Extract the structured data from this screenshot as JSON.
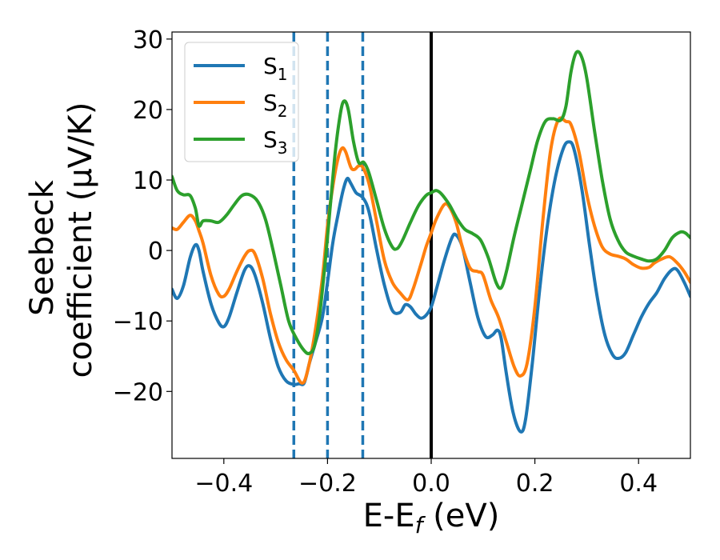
{
  "chart_data": {
    "type": "line",
    "xlabel_base": "E-E",
    "xlabel_sub": "f",
    "xlabel_unit": " (eV)",
    "ylabel_line1": "Seebeck",
    "ylabel_line2": "coefficient  (μV/K)",
    "xlim": [
      -0.5,
      0.5
    ],
    "ylim": [
      -29.5,
      31
    ],
    "xticks": [
      -0.4,
      -0.2,
      0.0,
      0.2,
      0.4
    ],
    "xtick_labels": [
      "−0.4",
      "−0.2",
      "0.0",
      "0.2",
      "0.4"
    ],
    "yticks": [
      -20,
      -10,
      0,
      10,
      20,
      30
    ],
    "ytick_labels": [
      "−20",
      "−10",
      "0",
      "10",
      "20",
      "30"
    ],
    "grid": false,
    "legend_position": "top-left",
    "vertical_lines": [
      {
        "x": -0.265,
        "style": "dashed",
        "color": "#1f77b4"
      },
      {
        "x": -0.2,
        "style": "dashed",
        "color": "#1f77b4"
      },
      {
        "x": -0.132,
        "style": "dashed",
        "color": "#1f77b4"
      },
      {
        "x": 0.0,
        "style": "solid",
        "color": "#000000"
      }
    ],
    "series": [
      {
        "name": "S",
        "subscript": "1",
        "color": "#1f77b4",
        "points": [
          [
            -0.5,
            -5.5
          ],
          [
            -0.49,
            -6.8
          ],
          [
            -0.478,
            -5
          ],
          [
            -0.465,
            -1
          ],
          [
            -0.455,
            0.8
          ],
          [
            -0.448,
            0
          ],
          [
            -0.44,
            -3
          ],
          [
            -0.425,
            -7.5
          ],
          [
            -0.41,
            -10.2
          ],
          [
            -0.4,
            -10.8
          ],
          [
            -0.39,
            -9.5
          ],
          [
            -0.375,
            -6
          ],
          [
            -0.36,
            -2.8
          ],
          [
            -0.35,
            -2.2
          ],
          [
            -0.34,
            -3.5
          ],
          [
            -0.325,
            -7.5
          ],
          [
            -0.31,
            -12.5
          ],
          [
            -0.295,
            -16.5
          ],
          [
            -0.28,
            -18.5
          ],
          [
            -0.265,
            -19
          ],
          [
            -0.255,
            -18.9
          ],
          [
            -0.245,
            -18.8
          ],
          [
            -0.235,
            -16
          ],
          [
            -0.225,
            -13.5
          ],
          [
            -0.21,
            -9.5
          ],
          [
            -0.2,
            -4.5
          ],
          [
            -0.19,
            1
          ],
          [
            -0.18,
            5
          ],
          [
            -0.17,
            8.5
          ],
          [
            -0.162,
            10.2
          ],
          [
            -0.155,
            9.5
          ],
          [
            -0.145,
            8.2
          ],
          [
            -0.132,
            7.5
          ],
          [
            -0.12,
            5.5
          ],
          [
            -0.105,
            0
          ],
          [
            -0.09,
            -5
          ],
          [
            -0.075,
            -8.5
          ],
          [
            -0.06,
            -8.8
          ],
          [
            -0.05,
            -7.7
          ],
          [
            -0.04,
            -8
          ],
          [
            -0.03,
            -9
          ],
          [
            -0.02,
            -9.6
          ],
          [
            -0.01,
            -9.2
          ],
          [
            0.0,
            -8
          ],
          [
            0.01,
            -5.5
          ],
          [
            0.025,
            -1.5
          ],
          [
            0.04,
            1.8
          ],
          [
            0.048,
            2.2
          ],
          [
            0.06,
            0.5
          ],
          [
            0.075,
            -4.5
          ],
          [
            0.09,
            -9.5
          ],
          [
            0.105,
            -12.2
          ],
          [
            0.118,
            -12
          ],
          [
            0.128,
            -11.3
          ],
          [
            0.135,
            -12.5
          ],
          [
            0.145,
            -17.5
          ],
          [
            0.158,
            -23
          ],
          [
            0.172,
            -25.7
          ],
          [
            0.182,
            -24
          ],
          [
            0.195,
            -16
          ],
          [
            0.21,
            -5
          ],
          [
            0.225,
            4
          ],
          [
            0.24,
            10.5
          ],
          [
            0.255,
            14.5
          ],
          [
            0.265,
            15.4
          ],
          [
            0.275,
            14.5
          ],
          [
            0.29,
            9
          ],
          [
            0.305,
            1
          ],
          [
            0.32,
            -6.5
          ],
          [
            0.335,
            -12
          ],
          [
            0.35,
            -14.8
          ],
          [
            0.362,
            -15.3
          ],
          [
            0.375,
            -14.5
          ],
          [
            0.39,
            -12
          ],
          [
            0.405,
            -9.5
          ],
          [
            0.42,
            -7.5
          ],
          [
            0.435,
            -6
          ],
          [
            0.45,
            -4
          ],
          [
            0.465,
            -2.7
          ],
          [
            0.475,
            -2.8
          ],
          [
            0.488,
            -4.5
          ],
          [
            0.5,
            -6.5
          ]
        ]
      },
      {
        "name": "S",
        "subscript": "2",
        "color": "#ff7f0e",
        "points": [
          [
            -0.5,
            3.2
          ],
          [
            -0.49,
            3
          ],
          [
            -0.478,
            4
          ],
          [
            -0.465,
            5
          ],
          [
            -0.455,
            4.2
          ],
          [
            -0.448,
            2.8
          ],
          [
            -0.44,
            1
          ],
          [
            -0.425,
            -3.5
          ],
          [
            -0.41,
            -6.2
          ],
          [
            -0.4,
            -6.5
          ],
          [
            -0.39,
            -5.5
          ],
          [
            -0.375,
            -3
          ],
          [
            -0.36,
            -0.8
          ],
          [
            -0.35,
            0
          ],
          [
            -0.34,
            -0.5
          ],
          [
            -0.325,
            -4
          ],
          [
            -0.31,
            -9
          ],
          [
            -0.295,
            -13
          ],
          [
            -0.28,
            -15.5
          ],
          [
            -0.265,
            -17
          ],
          [
            -0.25,
            -18.8
          ],
          [
            -0.24,
            -17.5
          ],
          [
            -0.225,
            -12
          ],
          [
            -0.21,
            -4
          ],
          [
            -0.2,
            3.5
          ],
          [
            -0.19,
            9
          ],
          [
            -0.18,
            13
          ],
          [
            -0.172,
            14.5
          ],
          [
            -0.165,
            14
          ],
          [
            -0.155,
            11.8
          ],
          [
            -0.148,
            11.5
          ],
          [
            -0.14,
            12
          ],
          [
            -0.132,
            11.8
          ],
          [
            -0.12,
            9.5
          ],
          [
            -0.105,
            4
          ],
          [
            -0.09,
            -1.5
          ],
          [
            -0.075,
            -4.5
          ],
          [
            -0.06,
            -6
          ],
          [
            -0.045,
            -7
          ],
          [
            -0.035,
            -5.5
          ],
          [
            -0.02,
            -2
          ],
          [
            -0.01,
            0.5
          ],
          [
            0.0,
            2.5
          ],
          [
            0.01,
            4.5
          ],
          [
            0.025,
            6.5
          ],
          [
            0.035,
            6.2
          ],
          [
            0.048,
            4
          ],
          [
            0.06,
            0.5
          ],
          [
            0.075,
            -2.5
          ],
          [
            0.09,
            -3
          ],
          [
            0.1,
            -3.5
          ],
          [
            0.115,
            -7
          ],
          [
            0.13,
            -9.5
          ],
          [
            0.145,
            -13
          ],
          [
            0.16,
            -16.5
          ],
          [
            0.172,
            -17.8
          ],
          [
            0.185,
            -16
          ],
          [
            0.2,
            -8
          ],
          [
            0.215,
            4
          ],
          [
            0.23,
            14
          ],
          [
            0.245,
            18.5
          ],
          [
            0.26,
            18.3
          ],
          [
            0.27,
            17.8
          ],
          [
            0.285,
            14
          ],
          [
            0.3,
            8
          ],
          [
            0.315,
            3.5
          ],
          [
            0.33,
            0.5
          ],
          [
            0.345,
            -0.5
          ],
          [
            0.36,
            -0.8
          ],
          [
            0.375,
            -1.2
          ],
          [
            0.39,
            -2
          ],
          [
            0.405,
            -2.5
          ],
          [
            0.42,
            -2.4
          ],
          [
            0.43,
            -1.8
          ],
          [
            0.445,
            -1.2
          ],
          [
            0.46,
            -0.9
          ],
          [
            0.475,
            -1.8
          ],
          [
            0.488,
            -3
          ],
          [
            0.5,
            -4.5
          ]
        ]
      },
      {
        "name": "S",
        "subscript": "3",
        "color": "#2ca02c",
        "points": [
          [
            -0.5,
            10.5
          ],
          [
            -0.49,
            8.5
          ],
          [
            -0.478,
            7.9
          ],
          [
            -0.465,
            7.8
          ],
          [
            -0.455,
            6
          ],
          [
            -0.448,
            3.5
          ],
          [
            -0.44,
            4.2
          ],
          [
            -0.425,
            4.2
          ],
          [
            -0.41,
            4
          ],
          [
            -0.395,
            5
          ],
          [
            -0.38,
            6.5
          ],
          [
            -0.365,
            7.8
          ],
          [
            -0.35,
            7.9
          ],
          [
            -0.335,
            7
          ],
          [
            -0.32,
            4.5
          ],
          [
            -0.305,
            0
          ],
          [
            -0.29,
            -5
          ],
          [
            -0.275,
            -10
          ],
          [
            -0.26,
            -12.5
          ],
          [
            -0.245,
            -14.2
          ],
          [
            -0.235,
            -14.6
          ],
          [
            -0.225,
            -13.5
          ],
          [
            -0.215,
            -9
          ],
          [
            -0.205,
            -2
          ],
          [
            -0.195,
            6
          ],
          [
            -0.185,
            14
          ],
          [
            -0.175,
            19.5
          ],
          [
            -0.168,
            21.2
          ],
          [
            -0.16,
            20
          ],
          [
            -0.15,
            15.5
          ],
          [
            -0.14,
            12.5
          ],
          [
            -0.13,
            12.5
          ],
          [
            -0.12,
            11
          ],
          [
            -0.105,
            7
          ],
          [
            -0.09,
            3
          ],
          [
            -0.075,
            0.5
          ],
          [
            -0.065,
            0.3
          ],
          [
            -0.055,
            1.5
          ],
          [
            -0.04,
            4
          ],
          [
            -0.025,
            6.3
          ],
          [
            -0.01,
            7.8
          ],
          [
            0.0,
            8.2
          ],
          [
            0.01,
            8.5
          ],
          [
            0.02,
            8
          ],
          [
            0.035,
            6.5
          ],
          [
            0.05,
            4.5
          ],
          [
            0.065,
            3
          ],
          [
            0.08,
            2.4
          ],
          [
            0.095,
            1.5
          ],
          [
            0.11,
            -1
          ],
          [
            0.125,
            -4.5
          ],
          [
            0.135,
            -5.3
          ],
          [
            0.145,
            -3
          ],
          [
            0.16,
            2
          ],
          [
            0.175,
            6.5
          ],
          [
            0.19,
            11
          ],
          [
            0.205,
            15.5
          ],
          [
            0.22,
            18.3
          ],
          [
            0.235,
            18.7
          ],
          [
            0.25,
            18.5
          ],
          [
            0.26,
            20.5
          ],
          [
            0.27,
            25.5
          ],
          [
            0.28,
            28.1
          ],
          [
            0.29,
            27.5
          ],
          [
            0.3,
            24.5
          ],
          [
            0.315,
            17
          ],
          [
            0.33,
            10
          ],
          [
            0.345,
            4.5
          ],
          [
            0.36,
            1.5
          ],
          [
            0.375,
            -0.2
          ],
          [
            0.39,
            -0.8
          ],
          [
            0.405,
            -1.2
          ],
          [
            0.42,
            -1.5
          ],
          [
            0.435,
            -1.2
          ],
          [
            0.45,
            0
          ],
          [
            0.465,
            1.8
          ],
          [
            0.48,
            2.6
          ],
          [
            0.49,
            2.5
          ],
          [
            0.5,
            1.8
          ]
        ]
      }
    ]
  }
}
